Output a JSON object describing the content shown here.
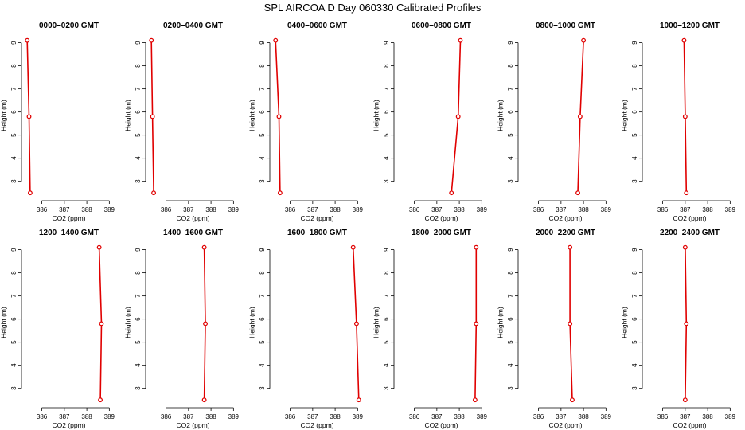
{
  "title": "SPL AIRCOA D  Day 060330  Calibrated Profiles",
  "colors": {
    "profile": "#e00000",
    "axis": "#000000"
  },
  "chart_data": [
    {
      "type": "line",
      "title": "0000–0200 GMT",
      "xlabel": "CO2 (ppm)",
      "ylabel": "Height (m)",
      "xlim": [
        385.2,
        389.2
      ],
      "ylim": [
        2.3,
        9.4
      ],
      "xticks": [
        "386",
        "387",
        "388",
        "389"
      ],
      "yticks": [
        "3",
        "4",
        "5",
        "6",
        "7",
        "8",
        "9"
      ],
      "series": [
        {
          "x": [
            385.48,
            385.43,
            385.35
          ],
          "y": [
            2.5,
            5.8,
            9.1
          ]
        }
      ]
    },
    {
      "type": "line",
      "title": "0200–0400 GMT",
      "xlabel": "CO2 (ppm)",
      "ylabel": "Height (m)",
      "xlim": [
        385.2,
        389.2
      ],
      "ylim": [
        2.3,
        9.4
      ],
      "xticks": [
        "386",
        "387",
        "388",
        "389"
      ],
      "yticks": [
        "3",
        "4",
        "5",
        "6",
        "7",
        "8",
        "9"
      ],
      "series": [
        {
          "x": [
            385.45,
            385.4,
            385.35
          ],
          "y": [
            2.5,
            5.8,
            9.1
          ]
        }
      ]
    },
    {
      "type": "line",
      "title": "0400–0600 GMT",
      "xlabel": "CO2 (ppm)",
      "ylabel": "Height (m)",
      "xlim": [
        385.2,
        389.2
      ],
      "ylim": [
        2.3,
        9.4
      ],
      "xticks": [
        "386",
        "387",
        "388",
        "389"
      ],
      "yticks": [
        "3",
        "4",
        "5",
        "6",
        "7",
        "8",
        "9"
      ],
      "series": [
        {
          "x": [
            385.55,
            385.5,
            385.35
          ],
          "y": [
            2.5,
            5.8,
            9.1
          ]
        }
      ]
    },
    {
      "type": "line",
      "title": "0600–0800 GMT",
      "xlabel": "CO2 (ppm)",
      "ylabel": "Height (m)",
      "xlim": [
        385.2,
        389.2
      ],
      "ylim": [
        2.3,
        9.4
      ],
      "xticks": [
        "386",
        "387",
        "388",
        "389"
      ],
      "yticks": [
        "3",
        "4",
        "5",
        "6",
        "7",
        "8",
        "9"
      ],
      "series": [
        {
          "x": [
            387.65,
            387.95,
            388.05
          ],
          "y": [
            2.5,
            5.8,
            9.1
          ]
        }
      ]
    },
    {
      "type": "line",
      "title": "0800–1000 GMT",
      "xlabel": "CO2 (ppm)",
      "ylabel": "Height (m)",
      "xlim": [
        385.2,
        389.2
      ],
      "ylim": [
        2.3,
        9.4
      ],
      "xticks": [
        "386",
        "387",
        "388",
        "389"
      ],
      "yticks": [
        "3",
        "4",
        "5",
        "6",
        "7",
        "8",
        "9"
      ],
      "series": [
        {
          "x": [
            387.75,
            387.85,
            388.0
          ],
          "y": [
            2.5,
            5.8,
            9.1
          ]
        }
      ]
    },
    {
      "type": "line",
      "title": "1000–1200 GMT",
      "xlabel": "CO2 (ppm)",
      "ylabel": "Height (m)",
      "xlim": [
        385.2,
        389.2
      ],
      "ylim": [
        2.3,
        9.4
      ],
      "xticks": [
        "386",
        "387",
        "388",
        "389"
      ],
      "yticks": [
        "3",
        "4",
        "5",
        "6",
        "7",
        "8",
        "9"
      ],
      "series": [
        {
          "x": [
            387.05,
            387.0,
            386.95
          ],
          "y": [
            2.5,
            5.8,
            9.1
          ]
        }
      ]
    },
    {
      "type": "line",
      "title": "1200–1400 GMT",
      "xlabel": "CO2 (ppm)",
      "ylabel": "Height (m)",
      "xlim": [
        385.2,
        389.2
      ],
      "ylim": [
        2.3,
        9.4
      ],
      "xticks": [
        "386",
        "387",
        "388",
        "389"
      ],
      "yticks": [
        "3",
        "4",
        "5",
        "6",
        "7",
        "8",
        "9"
      ],
      "series": [
        {
          "x": [
            388.6,
            388.65,
            388.55
          ],
          "y": [
            2.5,
            5.8,
            9.1
          ]
        }
      ]
    },
    {
      "type": "line",
      "title": "1400–1600 GMT",
      "xlabel": "CO2 (ppm)",
      "ylabel": "Height (m)",
      "xlim": [
        385.2,
        389.2
      ],
      "ylim": [
        2.3,
        9.4
      ],
      "xticks": [
        "386",
        "387",
        "388",
        "389"
      ],
      "yticks": [
        "3",
        "4",
        "5",
        "6",
        "7",
        "8",
        "9"
      ],
      "series": [
        {
          "x": [
            387.7,
            387.75,
            387.7
          ],
          "y": [
            2.5,
            5.8,
            9.1
          ]
        }
      ]
    },
    {
      "type": "line",
      "title": "1600–1800 GMT",
      "xlabel": "CO2 (ppm)",
      "ylabel": "Height (m)",
      "xlim": [
        385.2,
        389.2
      ],
      "ylim": [
        2.3,
        9.4
      ],
      "xticks": [
        "386",
        "387",
        "388",
        "389"
      ],
      "yticks": [
        "3",
        "4",
        "5",
        "6",
        "7",
        "8",
        "9"
      ],
      "series": [
        {
          "x": [
            389.05,
            388.95,
            388.8
          ],
          "y": [
            2.5,
            5.8,
            9.1
          ]
        }
      ]
    },
    {
      "type": "line",
      "title": "1800–2000 GMT",
      "xlabel": "CO2 (ppm)",
      "ylabel": "Height (m)",
      "xlim": [
        385.2,
        389.2
      ],
      "ylim": [
        2.3,
        9.4
      ],
      "xticks": [
        "386",
        "387",
        "388",
        "389"
      ],
      "yticks": [
        "3",
        "4",
        "5",
        "6",
        "7",
        "8",
        "9"
      ],
      "series": [
        {
          "x": [
            388.7,
            388.75,
            388.75
          ],
          "y": [
            2.5,
            5.8,
            9.1
          ]
        }
      ]
    },
    {
      "type": "line",
      "title": "2000–2200 GMT",
      "xlabel": "CO2 (ppm)",
      "ylabel": "Height (m)",
      "xlim": [
        385.2,
        389.2
      ],
      "ylim": [
        2.3,
        9.4
      ],
      "xticks": [
        "386",
        "387",
        "388",
        "389"
      ],
      "yticks": [
        "3",
        "4",
        "5",
        "6",
        "7",
        "8",
        "9"
      ],
      "series": [
        {
          "x": [
            387.5,
            387.4,
            387.4
          ],
          "y": [
            2.5,
            5.8,
            9.1
          ]
        }
      ]
    },
    {
      "type": "line",
      "title": "2200–2400 GMT",
      "xlabel": "CO2 (ppm)",
      "ylabel": "Height (m)",
      "xlim": [
        385.2,
        389.2
      ],
      "ylim": [
        2.3,
        9.4
      ],
      "xticks": [
        "386",
        "387",
        "388",
        "389"
      ],
      "yticks": [
        "3",
        "4",
        "5",
        "6",
        "7",
        "8",
        "9"
      ],
      "series": [
        {
          "x": [
            387.0,
            387.05,
            387.0
          ],
          "y": [
            2.5,
            5.8,
            9.1
          ]
        }
      ]
    }
  ]
}
